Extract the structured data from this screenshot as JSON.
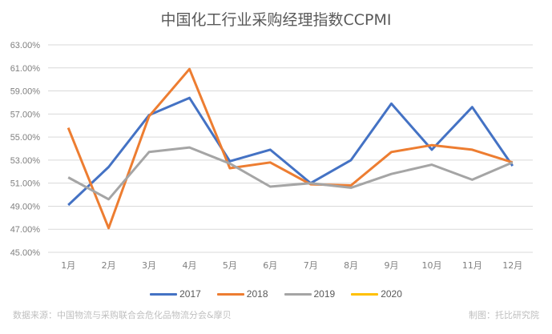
{
  "chart_data": {
    "type": "line",
    "title": "中国化工行业采购经理指数CCPMI",
    "xlabel": "",
    "ylabel": "",
    "categories": [
      "1月",
      "2月",
      "3月",
      "4月",
      "5月",
      "6月",
      "7月",
      "8月",
      "9月",
      "10月",
      "11月",
      "12月"
    ],
    "yticks": [
      "63.00%",
      "61.00%",
      "59.00%",
      "57.00%",
      "55.00%",
      "53.00%",
      "51.00%",
      "49.00%",
      "47.00%",
      "45.00%"
    ],
    "ylim": [
      45,
      63
    ],
    "grid": true,
    "legend_position": "bottom",
    "series": [
      {
        "name": "2017",
        "color": "#4472C4",
        "values": [
          49.1,
          52.4,
          56.9,
          58.4,
          52.9,
          53.9,
          51.0,
          53.0,
          57.9,
          53.9,
          57.6,
          52.5
        ]
      },
      {
        "name": "2018",
        "color": "#ED7D31",
        "values": [
          55.8,
          47.1,
          56.8,
          60.9,
          52.3,
          52.8,
          50.9,
          50.8,
          53.7,
          54.3,
          53.9,
          52.8
        ]
      },
      {
        "name": "2019",
        "color": "#A5A5A5",
        "values": [
          51.5,
          49.6,
          53.7,
          54.1,
          52.7,
          50.7,
          51.0,
          50.6,
          51.8,
          52.6,
          51.3,
          52.8
        ]
      },
      {
        "name": "2020",
        "color": "#FFC000",
        "values": []
      }
    ]
  },
  "footer": {
    "source": "数据来源：中国物流与采购联合会危化品物流分会&摩贝",
    "credit": "制图：托比研究院"
  }
}
